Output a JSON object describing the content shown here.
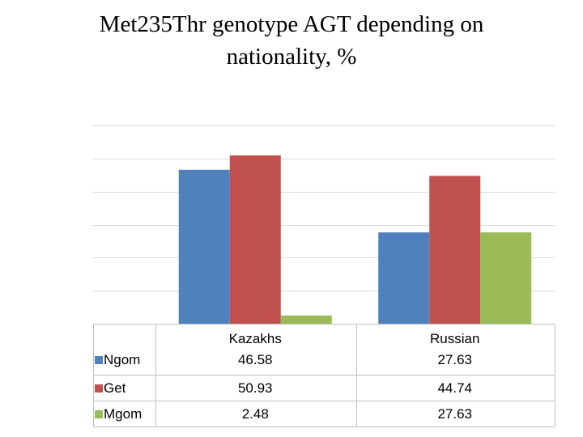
{
  "title_lines": [
    "Met235Thr genotype AGT depending on",
    "nationality, %"
  ],
  "chart_data": {
    "type": "bar",
    "title": "Met235Thr genotype AGT depending on nationality, %",
    "categories": [
      "Kazakhs",
      "Russian"
    ],
    "series": [
      {
        "name": "Ngom",
        "values": [
          46.58,
          27.63
        ],
        "color": "#4F81BD"
      },
      {
        "name": "Get",
        "values": [
          50.93,
          44.74
        ],
        "color": "#C0504D"
      },
      {
        "name": "Mgom",
        "values": [
          2.48,
          27.63
        ],
        "color": "#9BBB59"
      }
    ],
    "value_labels": [
      [
        "46.58",
        "27.63"
      ],
      [
        "50.93",
        "44.74"
      ],
      [
        "2.48",
        "27.63"
      ]
    ],
    "ylim": [
      0,
      60
    ],
    "grid": true,
    "legend": "data-table",
    "xlabel": "",
    "ylabel": ""
  }
}
